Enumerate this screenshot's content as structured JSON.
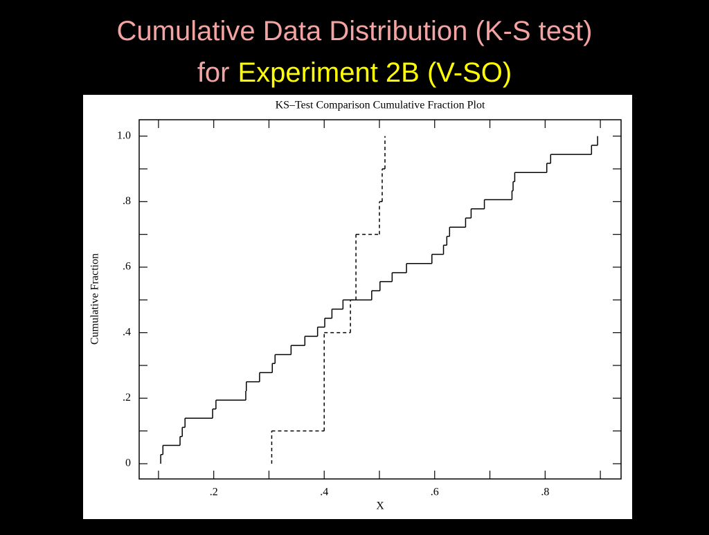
{
  "slide": {
    "title_line1": "Cumulative Data Distribution (K-S test)",
    "title_for": "for",
    "title_highlight": "Experiment 2B (V-SO)"
  },
  "chart_data": {
    "type": "step",
    "title": "KS–Test Comparison Cumulative Fraction Plot",
    "x_label": "X",
    "y_label": "Cumulative Fraction",
    "xlim": [
      0.065,
      0.9375
    ],
    "ylim": [
      -0.0465,
      1.05
    ],
    "xticks": [
      {
        "value": 0.2,
        "label": ".2"
      },
      {
        "value": 0.4,
        "label": ".4"
      },
      {
        "value": 0.6,
        "label": ".6"
      },
      {
        "value": 0.8,
        "label": ".8"
      }
    ],
    "yticks": [
      0,
      {
        "value": 0.2,
        "label": ".2"
      },
      {
        "value": 0.4,
        "label": ".4"
      },
      {
        "value": 0.6,
        "label": ".6"
      },
      {
        "value": 0.8,
        "label": ".8"
      },
      {
        "value": 1.0,
        "label": "1.0"
      }
    ],
    "x_minor_ticks": [
      0.1,
      0.3,
      0.5,
      0.7,
      0.9
    ],
    "y_minor_ticks": [
      0.1,
      0.3,
      0.5,
      0.7,
      0.9
    ],
    "series": [
      {
        "color": "#000000",
        "style": "solid",
        "x": [
          0.104,
          0.108,
          0.139,
          0.143,
          0.148,
          0.198,
          0.204,
          0.258,
          0.259,
          0.283,
          0.306,
          0.311,
          0.34,
          0.365,
          0.388,
          0.401,
          0.414,
          0.434,
          0.486,
          0.501,
          0.523,
          0.549,
          0.595,
          0.616,
          0.622,
          0.627,
          0.656,
          0.666,
          0.69,
          0.74,
          0.742,
          0.745,
          0.803,
          0.81,
          0.884,
          0.895
        ],
        "values": [
          0.028,
          0.056,
          0.083,
          0.111,
          0.139,
          0.167,
          0.194,
          0.222,
          0.25,
          0.278,
          0.306,
          0.333,
          0.361,
          0.389,
          0.417,
          0.444,
          0.472,
          0.5,
          0.528,
          0.556,
          0.583,
          0.611,
          0.639,
          0.667,
          0.694,
          0.722,
          0.75,
          0.778,
          0.806,
          0.833,
          0.861,
          0.889,
          0.917,
          0.944,
          0.972,
          1.0
        ]
      },
      {
        "color": "#000000",
        "style": "dashed",
        "x": [
          0.305,
          0.4,
          0.4475,
          0.4575,
          0.5,
          0.505,
          0.51
        ],
        "values": [
          0.1,
          0.4,
          0.5,
          0.7,
          0.8,
          0.9,
          1.0
        ]
      }
    ]
  }
}
